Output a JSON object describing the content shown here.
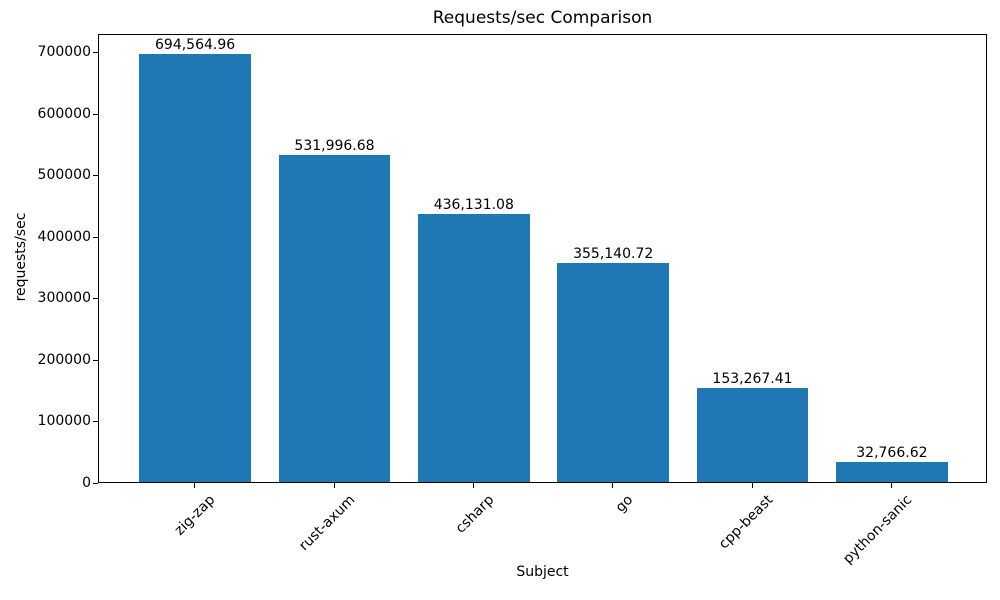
{
  "chart_data": {
    "type": "bar",
    "title": "Requests/sec Comparison",
    "xlabel": "Subject",
    "ylabel": "requests/sec",
    "categories": [
      "zig-zap",
      "rust-axum",
      "csharp",
      "go",
      "cpp-beast",
      "python-sanic"
    ],
    "values": [
      694564.96,
      531996.68,
      436131.08,
      355140.72,
      153267.41,
      32766.62
    ],
    "value_labels": [
      "694,564.96",
      "531,996.68",
      "436,131.08",
      "355,140.72",
      "153,267.41",
      "32,766.62"
    ],
    "ylim": [
      0,
      729293
    ],
    "yticks": [
      0,
      100000,
      200000,
      300000,
      400000,
      500000,
      600000,
      700000
    ],
    "ytick_labels": [
      "0",
      "100000",
      "200000",
      "300000",
      "400000",
      "500000",
      "600000",
      "700000"
    ],
    "x_tick_rotation_deg": 45,
    "grid": false,
    "legend": null,
    "colors": {
      "bar": "#1f77b4",
      "text": "#000000",
      "spine": "#000000",
      "background": "#ffffff"
    }
  }
}
